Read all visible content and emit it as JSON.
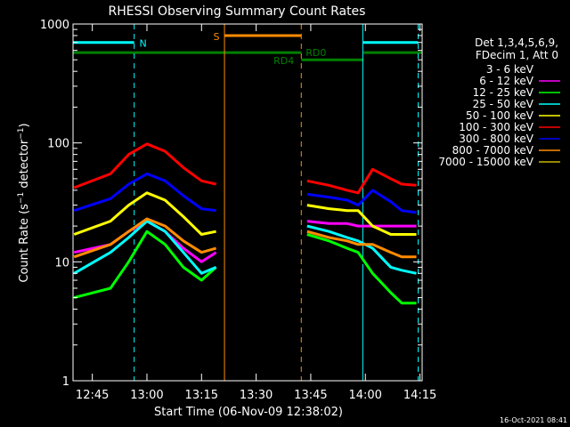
{
  "chart_data": {
    "type": "line",
    "title": "RHESSI Observing Summary Count Rates",
    "xlabel": "Start Time (06-Nov-09 12:38:02)",
    "ylabel": "Count Rate (s⁻¹ detector⁻¹)",
    "ylabel_parts": {
      "pre": "Count Rate (s",
      "exp1": "−1",
      "mid": " detector",
      "exp2": "−1",
      "post": ")"
    },
    "yscale": "log",
    "ylim": [
      1,
      1000
    ],
    "xlim_minutes": [
      -20.3,
      75.6
    ],
    "x_ticks": [
      {
        "m": -15,
        "label": "12:45"
      },
      {
        "m": 0,
        "label": "13:00"
      },
      {
        "m": 15,
        "label": "13:15"
      },
      {
        "m": 30,
        "label": "13:30"
      },
      {
        "m": 45,
        "label": "13:45"
      },
      {
        "m": 60,
        "label": "14:00"
      },
      {
        "m": 75,
        "label": "14:15"
      }
    ],
    "y_ticks": [
      {
        "v": 1,
        "label": "1"
      },
      {
        "v": 10,
        "label": "10"
      },
      {
        "v": 100,
        "label": "100"
      },
      {
        "v": 1000,
        "label": "1000"
      }
    ],
    "legend_header": [
      "Det 1,3,4,5,6,9,",
      "FDecim 1, Att 0"
    ],
    "legend_position": "right",
    "series": [
      {
        "name": "3 - 6 keV",
        "color": "#000000",
        "points": [
          [
            -20,
            14
          ],
          [
            -10,
            14
          ],
          [
            -5,
            16
          ],
          [
            0,
            19
          ],
          [
            5,
            16
          ],
          [
            10,
            12
          ],
          [
            15,
            9.5
          ],
          [
            19,
            12
          ],
          [
            44,
            13
          ],
          [
            50,
            11
          ],
          [
            55,
            10
          ],
          [
            58,
            10
          ],
          [
            62,
            9.5
          ],
          [
            67,
            9
          ],
          [
            70,
            8.5
          ],
          [
            74,
            8.5
          ]
        ]
      },
      {
        "name": "6 - 12 keV",
        "color": "#ff00ff",
        "points": [
          [
            -20,
            12
          ],
          [
            -10,
            14
          ],
          [
            -5,
            18
          ],
          [
            0,
            22
          ],
          [
            5,
            18
          ],
          [
            10,
            13
          ],
          [
            15,
            10
          ],
          [
            19,
            12
          ],
          [
            44,
            22
          ],
          [
            50,
            21
          ],
          [
            55,
            21
          ],
          [
            58,
            20
          ],
          [
            62,
            20
          ],
          [
            67,
            20
          ],
          [
            70,
            20
          ],
          [
            74,
            20
          ]
        ]
      },
      {
        "name": "12 - 25 keV",
        "color": "#00ff00",
        "points": [
          [
            -20,
            5
          ],
          [
            -10,
            6
          ],
          [
            -5,
            10
          ],
          [
            0,
            18
          ],
          [
            5,
            14
          ],
          [
            10,
            9
          ],
          [
            15,
            7
          ],
          [
            19,
            9
          ],
          [
            44,
            17
          ],
          [
            50,
            15
          ],
          [
            55,
            13
          ],
          [
            58,
            12
          ],
          [
            62,
            8
          ],
          [
            67,
            5.5
          ],
          [
            70,
            4.5
          ],
          [
            74,
            4.5
          ]
        ]
      },
      {
        "name": "25 - 50 keV",
        "color": "#00ffff",
        "points": [
          [
            -20,
            8
          ],
          [
            -10,
            12
          ],
          [
            -5,
            16
          ],
          [
            0,
            22
          ],
          [
            5,
            18
          ],
          [
            10,
            12
          ],
          [
            15,
            8
          ],
          [
            19,
            9
          ],
          [
            44,
            20
          ],
          [
            50,
            18
          ],
          [
            55,
            16
          ],
          [
            58,
            15
          ],
          [
            62,
            13
          ],
          [
            67,
            9
          ],
          [
            70,
            8.5
          ],
          [
            74,
            8
          ]
        ]
      },
      {
        "name": "50 - 100 keV",
        "color": "#ffff00",
        "points": [
          [
            -20,
            17
          ],
          [
            -10,
            22
          ],
          [
            -5,
            30
          ],
          [
            0,
            38
          ],
          [
            5,
            33
          ],
          [
            10,
            24
          ],
          [
            15,
            17
          ],
          [
            19,
            18
          ],
          [
            44,
            30
          ],
          [
            50,
            28
          ],
          [
            55,
            27
          ],
          [
            58,
            27
          ],
          [
            62,
            20
          ],
          [
            67,
            17
          ],
          [
            70,
            17
          ],
          [
            74,
            17
          ]
        ]
      },
      {
        "name": "100 - 300 keV",
        "color": "#ff0000",
        "points": [
          [
            -20,
            42
          ],
          [
            -10,
            55
          ],
          [
            -5,
            80
          ],
          [
            0,
            98
          ],
          [
            5,
            85
          ],
          [
            10,
            62
          ],
          [
            15,
            48
          ],
          [
            19,
            45
          ],
          [
            44,
            48
          ],
          [
            50,
            44
          ],
          [
            55,
            40
          ],
          [
            58,
            38
          ],
          [
            62,
            60
          ],
          [
            67,
            50
          ],
          [
            70,
            45
          ],
          [
            74,
            44
          ]
        ]
      },
      {
        "name": "300 - 800 keV",
        "color": "#0000ff",
        "points": [
          [
            -20,
            27
          ],
          [
            -10,
            34
          ],
          [
            -5,
            45
          ],
          [
            0,
            55
          ],
          [
            5,
            48
          ],
          [
            10,
            36
          ],
          [
            15,
            28
          ],
          [
            19,
            27
          ],
          [
            44,
            37
          ],
          [
            50,
            35
          ],
          [
            55,
            33
          ],
          [
            58,
            30
          ],
          [
            62,
            40
          ],
          [
            67,
            32
          ],
          [
            70,
            27
          ],
          [
            74,
            26
          ]
        ]
      },
      {
        "name": "800 - 7000 keV",
        "color": "#ff8c00",
        "points": [
          [
            -20,
            11
          ],
          [
            -10,
            14
          ],
          [
            -5,
            18
          ],
          [
            0,
            23
          ],
          [
            5,
            20
          ],
          [
            10,
            15
          ],
          [
            15,
            12
          ],
          [
            19,
            13
          ],
          [
            44,
            18
          ],
          [
            50,
            16
          ],
          [
            55,
            15
          ],
          [
            58,
            14
          ],
          [
            62,
            14
          ],
          [
            67,
            12
          ],
          [
            70,
            11
          ],
          [
            74,
            11
          ]
        ]
      },
      {
        "name": "7000 - 15000 keV",
        "color": "#c8b400",
        "points": []
      }
    ],
    "status_bars": [
      {
        "label": "N",
        "color": "#00ffff",
        "y": 700,
        "segments": [
          [
            -20.3,
            -3.5
          ],
          [
            59.3,
            74.5
          ]
        ]
      },
      {
        "label": "S",
        "color": "#ff8c00",
        "y": 800,
        "segments": [
          [
            21.3,
            42.4
          ]
        ]
      },
      {
        "label": "RD4",
        "color": "#008000",
        "y": 575,
        "segments": [
          [
            -20.3,
            42.4
          ]
        ]
      },
      {
        "label": "RD0",
        "color": "#008000",
        "y": 500,
        "segments": [
          [
            42.4,
            59.5
          ]
        ]
      },
      {
        "label": "",
        "color": "#008000",
        "y": 575,
        "segments": [
          [
            59.5,
            75.6
          ]
        ]
      }
    ],
    "vlines": [
      {
        "m": -3.5,
        "color": "#00ffff",
        "dashed": true
      },
      {
        "m": 21.3,
        "color": "#ff8c00",
        "dashed": false
      },
      {
        "m": 42.4,
        "color": "#ff8c00",
        "dashed": true
      },
      {
        "m": 59.3,
        "color": "#00ffff",
        "dashed": false
      },
      {
        "m": 74.5,
        "color": "#00ffff",
        "dashed": true
      }
    ],
    "footer_timestamp": "16-Oct-2021 08:41"
  }
}
